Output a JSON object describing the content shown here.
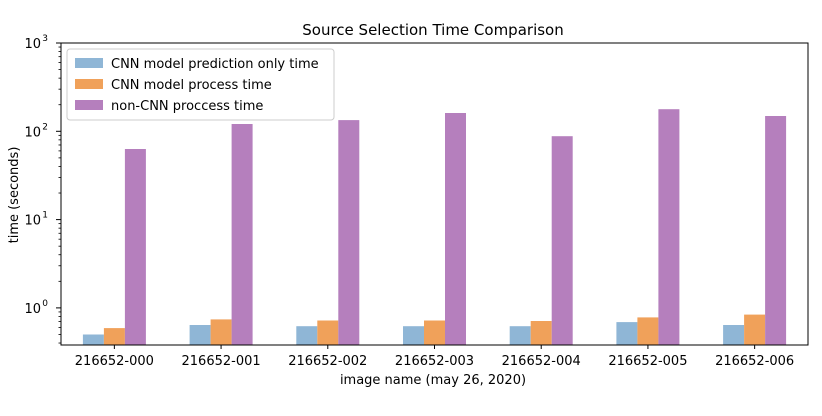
{
  "chart_data": {
    "type": "bar",
    "title": "Source Selection Time Comparison",
    "xlabel": "image name (may 26, 2020)",
    "ylabel": "time (seconds)",
    "yscale": "log",
    "ylim": [
      0.38,
      1000
    ],
    "yticks": [
      {
        "value": 1,
        "base": "10",
        "exp": "0"
      },
      {
        "value": 10,
        "base": "10",
        "exp": "1"
      },
      {
        "value": 100,
        "base": "10",
        "exp": "2"
      },
      {
        "value": 1000,
        "base": "10",
        "exp": "3"
      }
    ],
    "categories": [
      "216652-000",
      "216652-001",
      "216652-002",
      "216652-003",
      "216652-004",
      "216652-005",
      "216652-006"
    ],
    "series": [
      {
        "name": "CNN model prediction only time",
        "color": "#8fb6d6",
        "values": [
          0.5,
          0.64,
          0.62,
          0.62,
          0.62,
          0.69,
          0.64
        ]
      },
      {
        "name": "CNN model process time",
        "color": "#f0a15a",
        "values": [
          0.59,
          0.74,
          0.72,
          0.72,
          0.71,
          0.78,
          0.84
        ]
      },
      {
        "name": "non-CNN proccess time",
        "color": "#b57fbd",
        "values": [
          63,
          121,
          134,
          161,
          88,
          178,
          149
        ]
      }
    ],
    "legend": "top-left",
    "grid": false
  }
}
